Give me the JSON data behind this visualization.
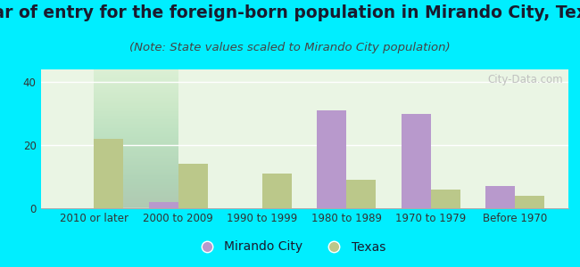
{
  "title": "Year of entry for the foreign-born population in Mirando City, Texas",
  "subtitle": "(Note: State values scaled to Mirando City population)",
  "categories": [
    "2010 or later",
    "2000 to 2009",
    "1990 to 1999",
    "1980 to 1989",
    "1970 to 1979",
    "Before 1970"
  ],
  "mirando_city": [
    0,
    2,
    0,
    31,
    30,
    7
  ],
  "texas": [
    22,
    14,
    11,
    9,
    6,
    4
  ],
  "mirando_color": "#b899cc",
  "texas_color": "#bbc88a",
  "bg_outer": "#00eeff",
  "bar_width": 0.35,
  "ylim": [
    0,
    44
  ],
  "yticks": [
    0,
    20,
    40
  ],
  "title_fontsize": 13.5,
  "subtitle_fontsize": 9.5,
  "tick_fontsize": 8.5,
  "legend_fontsize": 10,
  "watermark_text": "City-Data.com",
  "title_color": "#1a1a2e",
  "subtitle_color": "#444444",
  "tick_color": "#333333"
}
